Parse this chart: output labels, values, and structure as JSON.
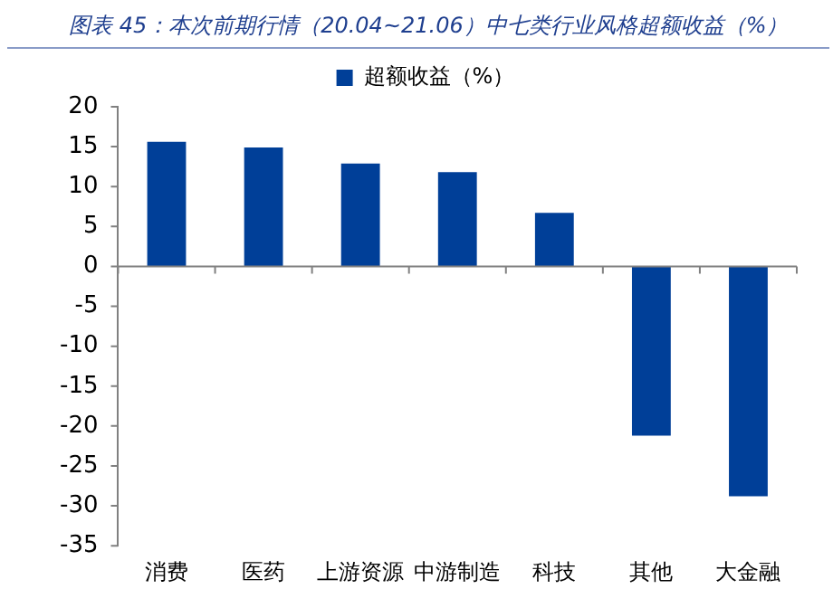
{
  "chart_data": {
    "type": "bar",
    "title": "图表 45：本次前期行情（20.04~21.06）中七类行业风格超额收益（%）",
    "categories": [
      "消费",
      "医药",
      "上游资源",
      "中游制造",
      "科技",
      "其他",
      "大金融"
    ],
    "series": [
      {
        "name": "超额收益（%）",
        "color": "#003f98",
        "values": [
          15.6,
          14.9,
          12.9,
          11.8,
          6.7,
          -21.2,
          -28.8
        ]
      }
    ],
    "ylim": [
      -35,
      20
    ],
    "yticks": [
      -35,
      -30,
      -25,
      -20,
      -15,
      -10,
      -5,
      0,
      5,
      10,
      15,
      20
    ],
    "grid": false,
    "ref_lines": [
      {
        "axis": "y",
        "value": 0,
        "color": "#808080"
      }
    ],
    "legend": "top"
  }
}
